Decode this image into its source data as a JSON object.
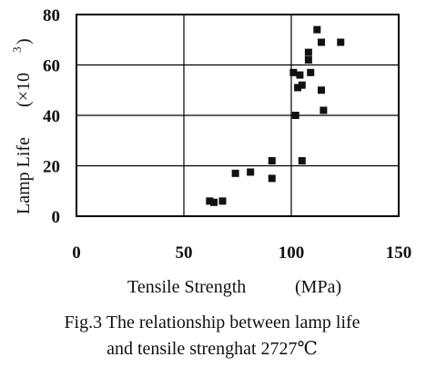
{
  "chart_data": {
    "type": "scatter",
    "xlabel": "Tensile Strength",
    "xunit": "(MPa)",
    "ylabel": "Lamp Life",
    "yunit": "(×10",
    "yunit_exp": "3",
    "yunit_close": ")",
    "xlim": [
      0,
      150
    ],
    "ylim": [
      0,
      80
    ],
    "xticks": [
      0,
      50,
      100,
      150
    ],
    "yticks": [
      0,
      20,
      40,
      60,
      80
    ],
    "grid": true,
    "points": [
      {
        "x": 62,
        "y": 6
      },
      {
        "x": 64,
        "y": 5.5
      },
      {
        "x": 68,
        "y": 6
      },
      {
        "x": 74,
        "y": 17
      },
      {
        "x": 81,
        "y": 17.5
      },
      {
        "x": 91,
        "y": 22
      },
      {
        "x": 91,
        "y": 15
      },
      {
        "x": 101,
        "y": 57
      },
      {
        "x": 102,
        "y": 40
      },
      {
        "x": 103,
        "y": 51
      },
      {
        "x": 104,
        "y": 56
      },
      {
        "x": 105,
        "y": 52
      },
      {
        "x": 105,
        "y": 22
      },
      {
        "x": 108,
        "y": 62
      },
      {
        "x": 108,
        "y": 65
      },
      {
        "x": 109,
        "y": 57
      },
      {
        "x": 112,
        "y": 74
      },
      {
        "x": 114,
        "y": 69
      },
      {
        "x": 114,
        "y": 50
      },
      {
        "x": 115,
        "y": 42
      },
      {
        "x": 123,
        "y": 69
      }
    ]
  },
  "caption": {
    "line1": "Fig.3 The relationship between lamp life",
    "line2": "and tensile strenghat 2727℃"
  },
  "colors": {
    "marker": "#111111",
    "axis": "#000000"
  }
}
